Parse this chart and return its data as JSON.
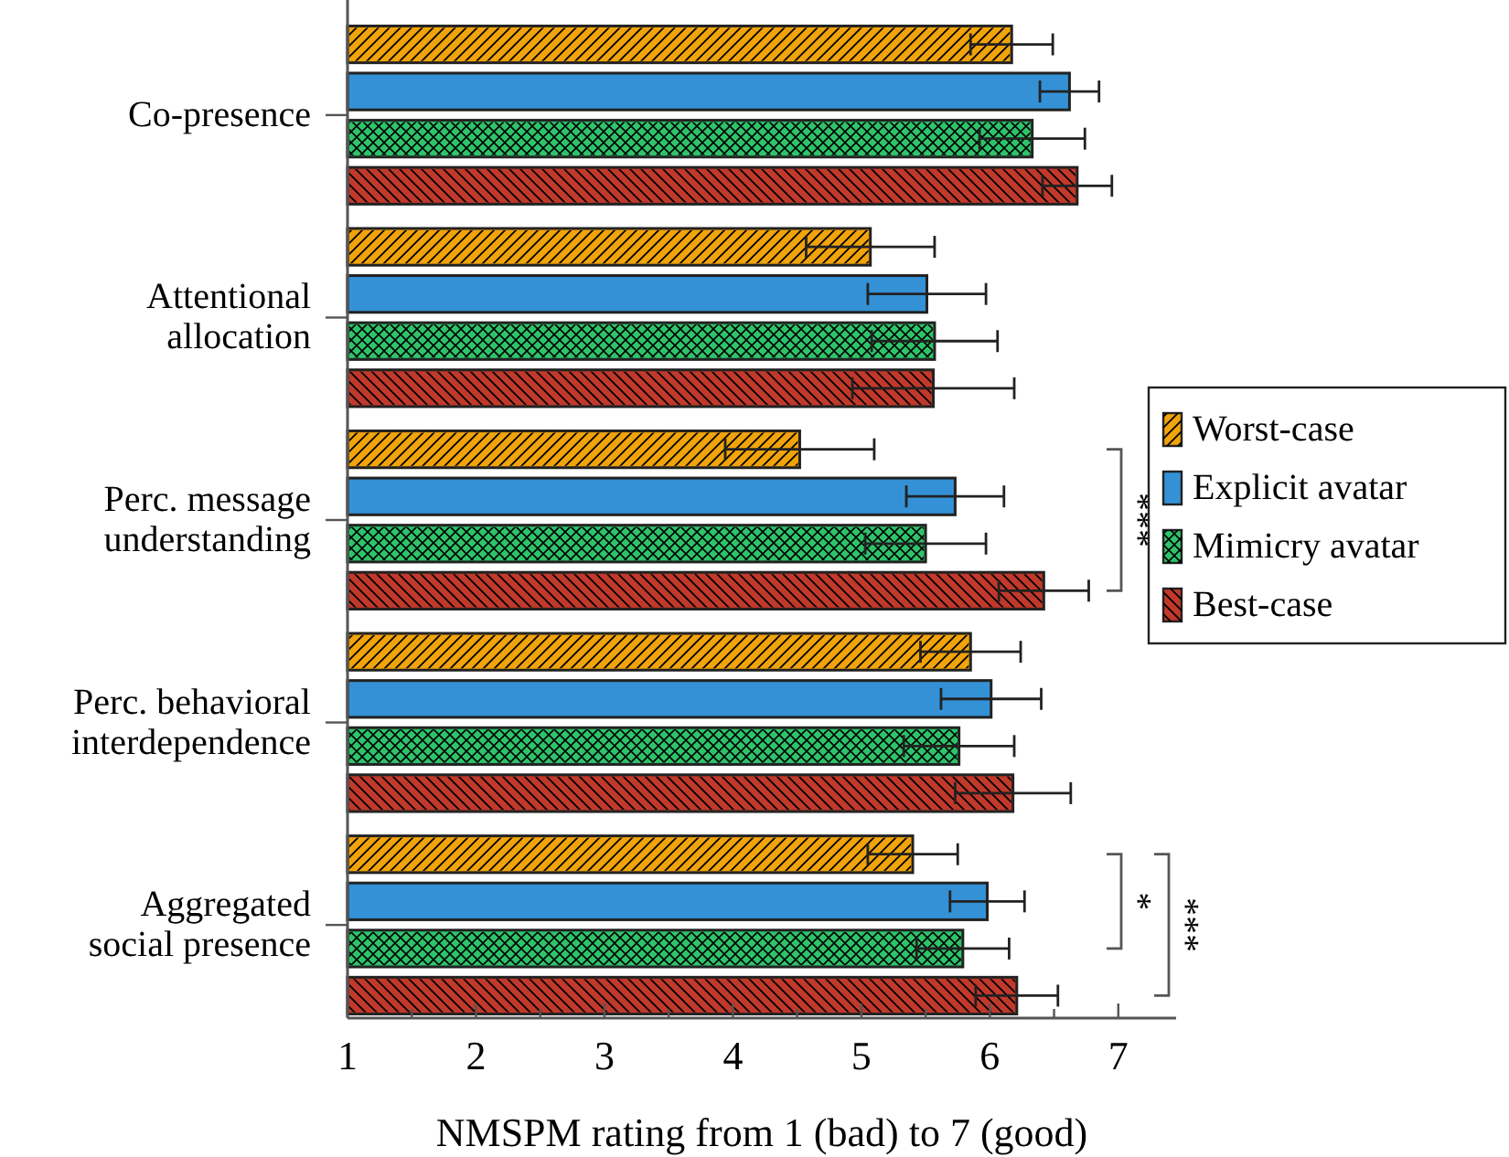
{
  "chart_data": {
    "type": "bar",
    "orientation": "horizontal",
    "xlabel": "NMSPM rating from 1 (bad) to 7 (good)",
    "categories": [
      "Co-presence",
      "Attentional\nallocation",
      "Perc. message\nunderstanding",
      "Perc. behavioral\ninterdependence",
      "Aggregated\nsocial presence"
    ],
    "series": [
      {
        "name": "Worst-case",
        "color": "#f0a30a",
        "values": [
          6.17,
          5.07,
          4.52,
          5.85,
          5.4
        ],
        "errors": [
          0.32,
          0.5,
          0.58,
          0.39,
          0.35
        ]
      },
      {
        "name": "Explicit avatar",
        "color": "#3491d6",
        "values": [
          6.62,
          5.51,
          5.73,
          6.01,
          5.98
        ],
        "errors": [
          0.23,
          0.46,
          0.38,
          0.39,
          0.29
        ]
      },
      {
        "name": "Mimicry avatar",
        "color": "#2ec36b",
        "values": [
          6.33,
          5.57,
          5.5,
          5.76,
          5.79
        ],
        "errors": [
          0.41,
          0.49,
          0.47,
          0.43,
          0.36
        ]
      },
      {
        "name": "Best-case",
        "color": "#c0392b",
        "values": [
          6.68,
          5.56,
          6.42,
          6.18,
          6.21
        ],
        "errors": [
          0.27,
          0.63,
          0.35,
          0.45,
          0.32
        ]
      }
    ],
    "xlim": [
      1,
      7.45
    ],
    "xticks": [
      1,
      {
        "value": 1.5,
        "label": null
      },
      2,
      {
        "value": 2.5,
        "label": null
      },
      3,
      {
        "value": 3.5,
        "label": null
      },
      4,
      {
        "value": 4.5,
        "label": null
      },
      5,
      {
        "value": 5.5,
        "label": null
      },
      6,
      {
        "value": 6.5,
        "label": null
      },
      7
    ],
    "annotations": [
      "***",
      "*",
      "***"
    ],
    "legend": "right"
  }
}
